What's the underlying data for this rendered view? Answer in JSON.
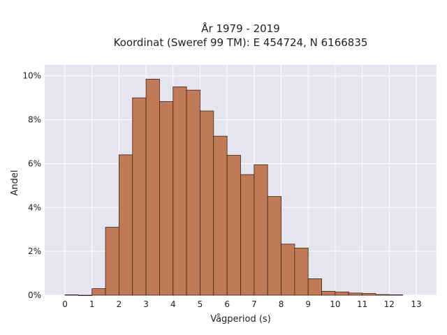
{
  "chart_data": {
    "type": "bar",
    "title_line1": "År 1979 - 2019",
    "title_line2": "Koordinat (Sweref 99 TM): E 454724, N 6166835",
    "xlabel": "Vågperiod (s)",
    "ylabel": "Andel",
    "bin_width": 0.5,
    "bins": [
      {
        "start": 0.0,
        "value": 0.02
      },
      {
        "start": 0.5,
        "value": 0.0
      },
      {
        "start": 1.0,
        "value": 0.3
      },
      {
        "start": 1.5,
        "value": 3.1
      },
      {
        "start": 2.0,
        "value": 6.4
      },
      {
        "start": 2.5,
        "value": 9.0
      },
      {
        "start": 3.0,
        "value": 9.85
      },
      {
        "start": 3.5,
        "value": 8.83
      },
      {
        "start": 4.0,
        "value": 9.5
      },
      {
        "start": 4.5,
        "value": 9.35
      },
      {
        "start": 5.0,
        "value": 8.4
      },
      {
        "start": 5.5,
        "value": 7.25
      },
      {
        "start": 6.0,
        "value": 6.38
      },
      {
        "start": 6.5,
        "value": 5.5
      },
      {
        "start": 7.0,
        "value": 5.95
      },
      {
        "start": 7.5,
        "value": 4.5
      },
      {
        "start": 8.0,
        "value": 2.33
      },
      {
        "start": 8.5,
        "value": 2.15
      },
      {
        "start": 9.0,
        "value": 0.75
      },
      {
        "start": 9.5,
        "value": 0.18
      },
      {
        "start": 10.0,
        "value": 0.15
      },
      {
        "start": 10.5,
        "value": 0.1
      },
      {
        "start": 11.0,
        "value": 0.08
      },
      {
        "start": 11.5,
        "value": 0.03
      },
      {
        "start": 12.0,
        "value": 0.02
      }
    ],
    "xlim": [
      -0.75,
      13.75
    ],
    "ylim": [
      0,
      10.5
    ],
    "xticks": [
      0,
      1,
      2,
      3,
      4,
      5,
      6,
      7,
      8,
      9,
      10,
      11,
      12,
      13
    ],
    "yticks": [
      0,
      2,
      4,
      6,
      8,
      10
    ],
    "ytick_labels": [
      "0%",
      "2%",
      "4%",
      "6%",
      "8%",
      "10%"
    ],
    "grid": true,
    "legend": "none",
    "bar_color": "#c07a55",
    "bar_edge_color": "#3d2418",
    "background_color": "#e5e5f0"
  }
}
